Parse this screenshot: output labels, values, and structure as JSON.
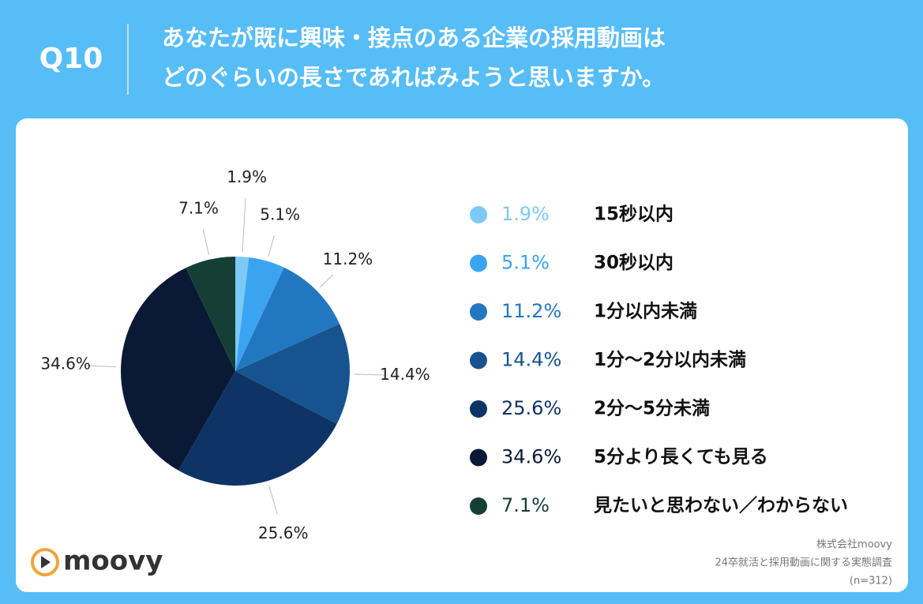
{
  "chart_data": {
    "type": "pie",
    "question": "Q10",
    "title": [
      "あなたが既に興味・接点のある企業の採用動画は",
      "どのぐらいの長さであればみようと思いますか。"
    ],
    "categories": [
      "15秒以内",
      "30秒以内",
      "1分以内未満",
      "1分〜2分以内未満",
      "2分〜5分未満",
      "5分より長くても見る",
      "見たいと思わない／わからない"
    ],
    "values": [
      1.9,
      5.1,
      11.2,
      14.4,
      25.6,
      34.6,
      7.1
    ],
    "value_labels": [
      "1.9%",
      "5.1%",
      "11.2%",
      "14.4%",
      "25.6%",
      "34.6%",
      "7.1%"
    ],
    "colors": [
      "#7cc9f6",
      "#3ba4f1",
      "#2277c1",
      "#17548f",
      "#0e3466",
      "#0a1a36",
      "#153f35"
    ],
    "logo": "moovy",
    "source": [
      "株式会社moovy",
      "24卒就活と採用動画に関する実態調査",
      "(n=312)"
    ]
  }
}
